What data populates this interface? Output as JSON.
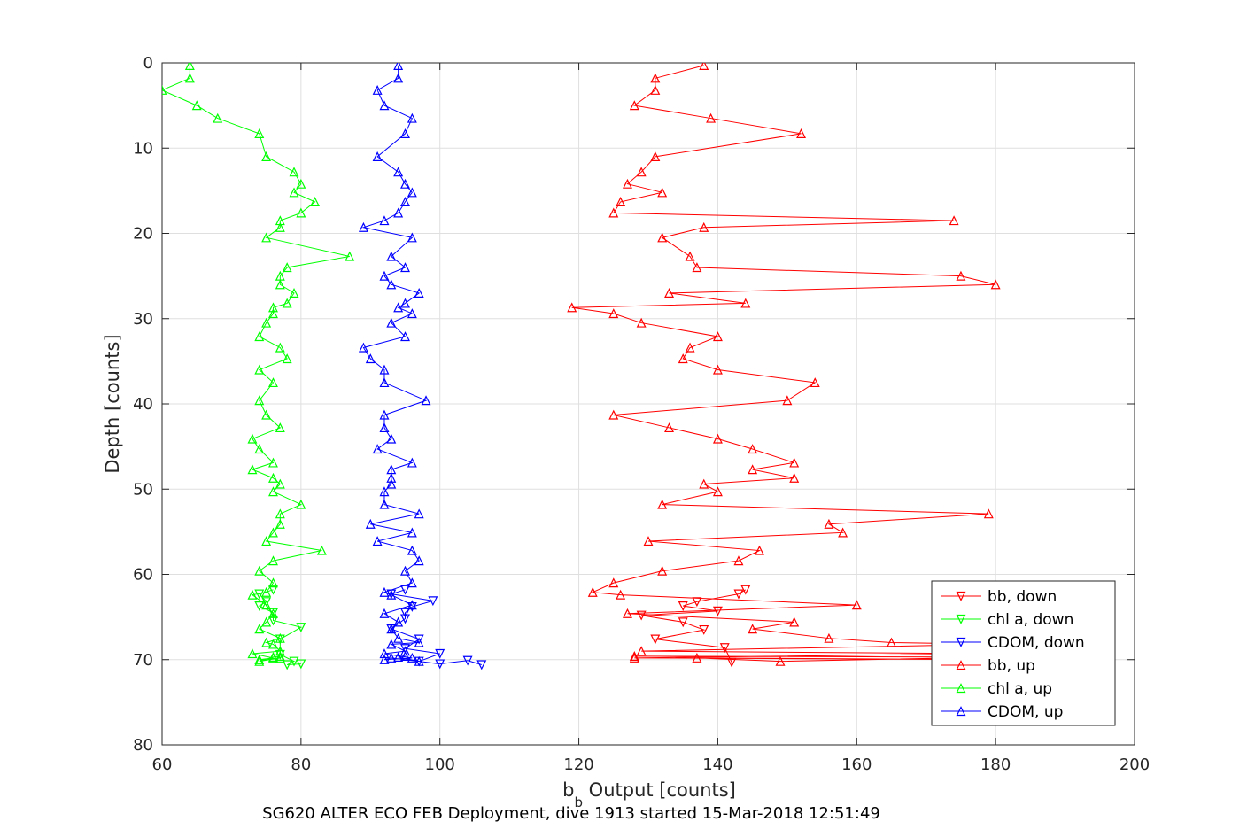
{
  "chart_data": {
    "type": "line",
    "title": "",
    "xlabel_main": "b",
    "xlabel_sub": "b",
    "xlabel_rest": " Output [counts]",
    "ylabel": "Depth [counts]",
    "caption": "SG620 ALTER ECO FEB Deployment, dive 1913 started 15-Mar-2018 12:51:49",
    "xlim": [
      60,
      200
    ],
    "ylim": [
      0,
      80
    ],
    "y_reversed": true,
    "grid": true,
    "xticks": [
      60,
      80,
      100,
      120,
      140,
      160,
      180,
      200
    ],
    "yticks": [
      0,
      10,
      20,
      30,
      40,
      50,
      60,
      70,
      80
    ],
    "legend_position": "bottom-right",
    "series": [
      {
        "name": "bb, down",
        "color": "#ff0000",
        "marker": "triangle-down",
        "points": [
          [
            144,
            61.8
          ],
          [
            143,
            62.3
          ],
          [
            137,
            63.2
          ],
          [
            135,
            63.7
          ],
          [
            140,
            64.3
          ],
          [
            129,
            64.8
          ],
          [
            135,
            65.6
          ],
          [
            138,
            66.5
          ],
          [
            131,
            67.6
          ],
          [
            141,
            68.6
          ],
          [
            142,
            70.3
          ]
        ]
      },
      {
        "name": "chl a, down",
        "color": "#00ff00",
        "marker": "triangle-down",
        "points": [
          [
            76,
            61.8
          ],
          [
            74,
            62.3
          ],
          [
            75,
            63.2
          ],
          [
            74,
            63.7
          ],
          [
            76,
            64.5
          ],
          [
            76,
            65.4
          ],
          [
            80,
            66.2
          ],
          [
            77,
            67.6
          ],
          [
            77,
            69.4
          ],
          [
            79,
            70.2
          ],
          [
            78,
            70.6
          ],
          [
            80,
            70.5
          ]
        ]
      },
      {
        "name": "CDOM, down",
        "color": "#0000ff",
        "marker": "triangle-down",
        "points": [
          [
            95,
            61.8
          ],
          [
            93,
            62.3
          ],
          [
            99,
            63.1
          ],
          [
            96,
            63.8
          ],
          [
            95,
            64.5
          ],
          [
            95,
            65.2
          ],
          [
            93,
            66.4
          ],
          [
            97,
            67.6
          ],
          [
            95,
            68.7
          ],
          [
            100,
            69.3
          ],
          [
            97,
            70.2
          ],
          [
            100,
            70.5
          ],
          [
            104,
            70.1
          ],
          [
            106,
            70.6
          ]
        ]
      },
      {
        "name": "bb, up",
        "color": "#ff0000",
        "marker": "triangle-up",
        "points": [
          [
            138,
            0.3
          ],
          [
            131,
            1.8
          ],
          [
            131,
            3.2
          ],
          [
            128,
            5.0
          ],
          [
            139,
            6.5
          ],
          [
            152,
            8.3
          ],
          [
            131,
            11.0
          ],
          [
            129,
            12.8
          ],
          [
            127,
            14.2
          ],
          [
            132,
            15.2
          ],
          [
            126,
            16.3
          ],
          [
            125,
            17.6
          ],
          [
            174,
            18.5
          ],
          [
            138,
            19.3
          ],
          [
            132,
            20.5
          ],
          [
            136,
            22.7
          ],
          [
            137,
            24.0
          ],
          [
            175,
            25.0
          ],
          [
            180,
            26.0
          ],
          [
            133,
            27.0
          ],
          [
            144,
            28.2
          ],
          [
            119,
            28.7
          ],
          [
            125,
            29.4
          ],
          [
            129,
            30.5
          ],
          [
            140,
            32.1
          ],
          [
            136,
            33.4
          ],
          [
            135,
            34.7
          ],
          [
            140,
            36.0
          ],
          [
            154,
            37.5
          ],
          [
            150,
            39.6
          ],
          [
            125,
            41.3
          ],
          [
            133,
            42.8
          ],
          [
            140,
            44.1
          ],
          [
            145,
            45.3
          ],
          [
            151,
            46.9
          ],
          [
            145,
            47.7
          ],
          [
            151,
            48.7
          ],
          [
            138,
            49.4
          ],
          [
            140,
            50.3
          ],
          [
            132,
            51.8
          ],
          [
            179,
            52.9
          ],
          [
            156,
            54.1
          ],
          [
            158,
            55.1
          ],
          [
            130,
            56.1
          ],
          [
            146,
            57.2
          ],
          [
            143,
            58.4
          ],
          [
            132,
            59.6
          ],
          [
            125,
            61.0
          ],
          [
            122,
            62.1
          ],
          [
            126,
            62.4
          ],
          [
            160,
            63.6
          ],
          [
            127,
            64.6
          ],
          [
            151,
            65.6
          ],
          [
            145,
            66.4
          ],
          [
            156,
            67.5
          ],
          [
            165,
            68.0
          ],
          [
            180,
            68.2
          ],
          [
            129,
            69.0
          ],
          [
            180,
            69.3
          ],
          [
            128,
            69.8
          ],
          [
            180,
            70.0
          ],
          [
            137,
            69.8
          ],
          [
            149,
            70.2
          ],
          [
            180,
            69.7
          ],
          [
            128,
            69.6
          ]
        ]
      },
      {
        "name": "chl a, up",
        "color": "#00ff00",
        "marker": "triangle-up",
        "points": [
          [
            64,
            0.3
          ],
          [
            64,
            1.8
          ],
          [
            60,
            3.2
          ],
          [
            65,
            5.0
          ],
          [
            68,
            6.5
          ],
          [
            74,
            8.3
          ],
          [
            75,
            11.0
          ],
          [
            79,
            12.8
          ],
          [
            80,
            14.2
          ],
          [
            79,
            15.2
          ],
          [
            82,
            16.3
          ],
          [
            80,
            17.6
          ],
          [
            77,
            18.5
          ],
          [
            77,
            19.3
          ],
          [
            75,
            20.5
          ],
          [
            87,
            22.7
          ],
          [
            78,
            24.0
          ],
          [
            77,
            25.0
          ],
          [
            77,
            26.0
          ],
          [
            79,
            27.0
          ],
          [
            78,
            28.2
          ],
          [
            76,
            28.7
          ],
          [
            76,
            29.4
          ],
          [
            75,
            30.5
          ],
          [
            74,
            32.1
          ],
          [
            77,
            33.4
          ],
          [
            78,
            34.7
          ],
          [
            74,
            36.0
          ],
          [
            76,
            37.5
          ],
          [
            74,
            39.6
          ],
          [
            75,
            41.3
          ],
          [
            77,
            42.8
          ],
          [
            73,
            44.1
          ],
          [
            74,
            45.3
          ],
          [
            76,
            46.9
          ],
          [
            73,
            47.7
          ],
          [
            76,
            48.7
          ],
          [
            77,
            49.4
          ],
          [
            76,
            50.3
          ],
          [
            80,
            51.8
          ],
          [
            77,
            52.9
          ],
          [
            77,
            54.1
          ],
          [
            76,
            55.1
          ],
          [
            75,
            56.1
          ],
          [
            83,
            57.2
          ],
          [
            76,
            58.4
          ],
          [
            74,
            59.6
          ],
          [
            76,
            61.0
          ],
          [
            75,
            62.1
          ],
          [
            73,
            62.4
          ],
          [
            75,
            63.6
          ],
          [
            76,
            64.6
          ],
          [
            75,
            65.6
          ],
          [
            74,
            66.4
          ],
          [
            77,
            67.5
          ],
          [
            75,
            68.0
          ],
          [
            76,
            68.2
          ],
          [
            77,
            69.0
          ],
          [
            73,
            69.3
          ],
          [
            76,
            69.8
          ],
          [
            74,
            70.0
          ],
          [
            77,
            69.8
          ],
          [
            74,
            70.2
          ],
          [
            76,
            69.7
          ],
          [
            77,
            69.6
          ]
        ]
      },
      {
        "name": "CDOM, up",
        "color": "#0000ff",
        "marker": "triangle-up",
        "points": [
          [
            94,
            0.3
          ],
          [
            94,
            1.8
          ],
          [
            91,
            3.2
          ],
          [
            92,
            5.0
          ],
          [
            96,
            6.5
          ],
          [
            95,
            8.3
          ],
          [
            91,
            11.0
          ],
          [
            94,
            12.8
          ],
          [
            95,
            14.2
          ],
          [
            96,
            15.2
          ],
          [
            95,
            16.3
          ],
          [
            94,
            17.6
          ],
          [
            92,
            18.5
          ],
          [
            89,
            19.3
          ],
          [
            96,
            20.5
          ],
          [
            93,
            22.7
          ],
          [
            95,
            24.0
          ],
          [
            92,
            25.0
          ],
          [
            93,
            26.0
          ],
          [
            97,
            27.0
          ],
          [
            95,
            28.2
          ],
          [
            94,
            28.7
          ],
          [
            96,
            29.4
          ],
          [
            93,
            30.5
          ],
          [
            95,
            32.1
          ],
          [
            89,
            33.4
          ],
          [
            90,
            34.7
          ],
          [
            92,
            36.0
          ],
          [
            92,
            37.5
          ],
          [
            98,
            39.6
          ],
          [
            92,
            41.3
          ],
          [
            92,
            42.8
          ],
          [
            93,
            44.1
          ],
          [
            91,
            45.3
          ],
          [
            96,
            46.9
          ],
          [
            93,
            47.7
          ],
          [
            93,
            48.7
          ],
          [
            93,
            49.4
          ],
          [
            92,
            50.3
          ],
          [
            92,
            51.8
          ],
          [
            97,
            52.9
          ],
          [
            90,
            54.1
          ],
          [
            96,
            55.1
          ],
          [
            91,
            56.1
          ],
          [
            96,
            57.2
          ],
          [
            97,
            58.4
          ],
          [
            95,
            59.6
          ],
          [
            96,
            61.0
          ],
          [
            92,
            62.1
          ],
          [
            93,
            62.4
          ],
          [
            96,
            63.6
          ],
          [
            92,
            64.6
          ],
          [
            94,
            65.6
          ],
          [
            93,
            66.4
          ],
          [
            94,
            67.5
          ],
          [
            97,
            68.0
          ],
          [
            93,
            68.2
          ],
          [
            95,
            69.0
          ],
          [
            92,
            69.3
          ],
          [
            96,
            69.8
          ],
          [
            92,
            70.0
          ],
          [
            93,
            69.8
          ],
          [
            97,
            70.2
          ],
          [
            94,
            69.7
          ],
          [
            95,
            69.6
          ]
        ]
      }
    ]
  }
}
